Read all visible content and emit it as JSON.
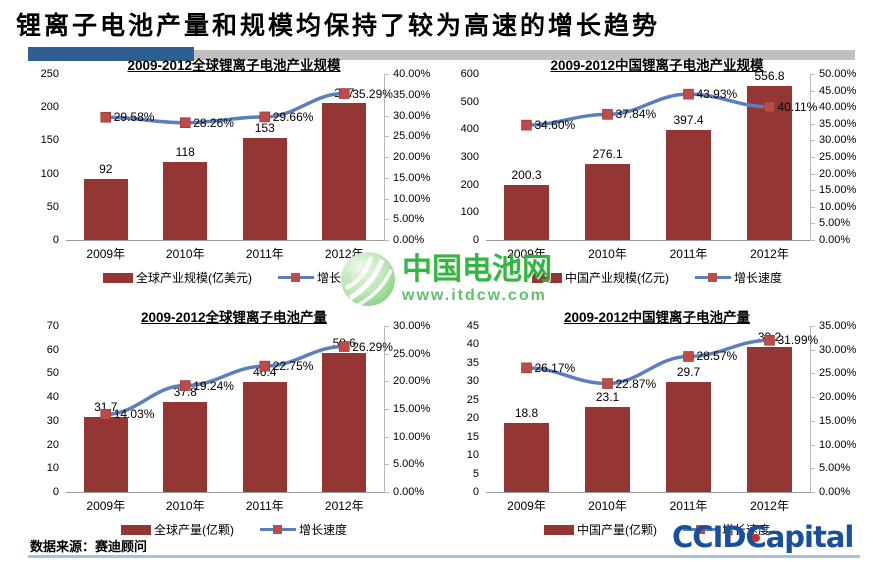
{
  "page": {
    "title": "锂离子电池产量和规模均保持了较为高速的增长趋势",
    "source_label": "数据来源：赛迪顾问"
  },
  "watermark": {
    "site_name": "中国电池网",
    "site_url": "www.itdcw.com"
  },
  "logo": {
    "ccid": "CCID",
    "capital": "Capital"
  },
  "colors": {
    "bar": "#943634",
    "marker": "#bf4b47",
    "line": "#5b7fbd",
    "header_bar_blue": "#2d5f93",
    "header_bar_gray": "#c0c0c0",
    "bottom_rule": "#a9c2dc",
    "watermark_green": "#2cb23c",
    "logo_blue": "#1a4f9d",
    "logo_dot_red": "#d1272e"
  },
  "chart_data": [
    {
      "type": "bar+line",
      "title": "2009-2012全球锂离子电池产业规模",
      "categories": [
        "2009年",
        "2010年",
        "2011年",
        "2012年"
      ],
      "bar_series": {
        "name": "全球产业规模(亿美元)",
        "values": [
          92,
          118,
          153,
          207
        ],
        "labels": [
          "92",
          "118",
          "153",
          "207"
        ]
      },
      "line_series": {
        "name": "增长速度",
        "values": [
          29.58,
          28.26,
          29.66,
          35.29
        ],
        "labels": [
          "29.58%",
          "28.26%",
          "29.66%",
          "35.29%"
        ]
      },
      "left_axis": {
        "max": 250,
        "ticks": [
          "250",
          "200",
          "150",
          "100",
          "50",
          "0"
        ]
      },
      "right_axis": {
        "max": 40,
        "ticks": [
          "40.00%",
          "35.00%",
          "30.00%",
          "25.00%",
          "20.00%",
          "15.00%",
          "10.00%",
          "5.00%",
          "0.00%"
        ]
      },
      "legend_position": "bottom"
    },
    {
      "type": "bar+line",
      "title": "2009-2012中国锂离子电池产业规模",
      "categories": [
        "2009年",
        "2010年",
        "2011年",
        "2012年"
      ],
      "bar_series": {
        "name": "中国产业规模(亿元)",
        "values": [
          200.3,
          276.1,
          397.4,
          556.8
        ],
        "labels": [
          "200.3",
          "276.1",
          "397.4",
          "556.8"
        ]
      },
      "line_series": {
        "name": "增长速度",
        "values": [
          34.6,
          37.84,
          43.93,
          40.11
        ],
        "labels": [
          "34.60%",
          "37.84%",
          "43.93%",
          "40.11%"
        ]
      },
      "left_axis": {
        "max": 600,
        "ticks": [
          "600",
          "500",
          "400",
          "300",
          "200",
          "100",
          "0"
        ]
      },
      "right_axis": {
        "max": 50,
        "ticks": [
          "50.00%",
          "45.00%",
          "40.00%",
          "35.00%",
          "30.00%",
          "25.00%",
          "20.00%",
          "15.00%",
          "10.00%",
          "5.00%",
          "0.00%"
        ]
      },
      "legend_position": "bottom"
    },
    {
      "type": "bar+line",
      "title": "2009-2012全球锂离子电池产量",
      "categories": [
        "2009年",
        "2010年",
        "2011年",
        "2012年"
      ],
      "bar_series": {
        "name": "全球产量(亿颗)",
        "values": [
          31.7,
          37.8,
          46.4,
          58.6
        ],
        "labels": [
          "31.7",
          "37.8",
          "46.4",
          "58.6"
        ]
      },
      "line_series": {
        "name": "增长速度",
        "values": [
          14.03,
          19.24,
          22.75,
          26.29
        ],
        "labels": [
          "14.03%",
          "19.24%",
          "22.75%",
          "26.29%"
        ]
      },
      "left_axis": {
        "max": 70,
        "ticks": [
          "70",
          "60",
          "50",
          "40",
          "30",
          "20",
          "10",
          "0"
        ]
      },
      "right_axis": {
        "max": 30,
        "ticks": [
          "30.00%",
          "25.00%",
          "20.00%",
          "15.00%",
          "10.00%",
          "5.00%",
          "0.00%"
        ]
      },
      "legend_position": "bottom"
    },
    {
      "type": "bar+line",
      "title": "2009-2012中国锂离子电池产量",
      "categories": [
        "2009年",
        "2010年",
        "2011年",
        "2012年"
      ],
      "bar_series": {
        "name": "中国产量(亿颗)",
        "values": [
          18.8,
          23.1,
          29.7,
          39.2
        ],
        "labels": [
          "18.8",
          "23.1",
          "29.7",
          "39.2"
        ]
      },
      "line_series": {
        "name": "增长速度",
        "values": [
          26.17,
          22.87,
          28.57,
          31.99
        ],
        "labels": [
          "26.17%",
          "22.87%",
          "28.57%",
          "31.99%"
        ]
      },
      "left_axis": {
        "max": 45,
        "ticks": [
          "45",
          "40",
          "35",
          "30",
          "25",
          "20",
          "15",
          "10",
          "5",
          "0"
        ]
      },
      "right_axis": {
        "max": 35,
        "ticks": [
          "35.00%",
          "30.00%",
          "25.00%",
          "20.00%",
          "15.00%",
          "10.00%",
          "5.00%",
          "0.00%"
        ]
      },
      "legend_position": "bottom"
    }
  ]
}
